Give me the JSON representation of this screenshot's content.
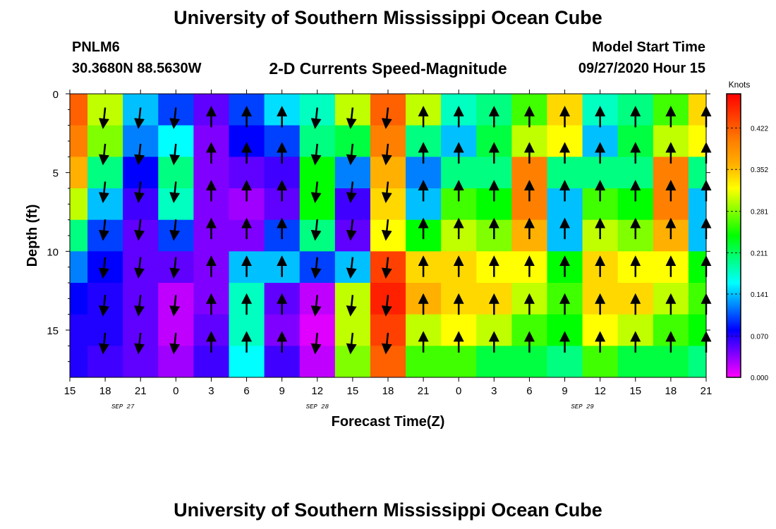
{
  "header": {
    "title": "University of Southern Mississippi Ocean Cube",
    "station": "PNLM6",
    "location": "30.3680N 88.5630W",
    "subtitle": "2-D Currents Speed-Magnitude",
    "model_label": "Model Start Time",
    "model_time": "09/27/2020 Hour 15"
  },
  "footer": {
    "title": "University of Southern Mississippi Ocean Cube"
  },
  "chart_data": {
    "type": "heatmap",
    "title": "2-D Currents Speed-Magnitude",
    "xlabel": "Forecast Time(Z)",
    "ylabel": "Depth (ft)",
    "x_range_hours": [
      0,
      54
    ],
    "x_ticks": [
      "15",
      "18",
      "21",
      "0",
      "3",
      "6",
      "9",
      "12",
      "15",
      "18",
      "21",
      "0",
      "3",
      "6",
      "9",
      "12",
      "15",
      "18",
      "21"
    ],
    "date_labels": [
      {
        "label": "SEP 27",
        "at_hour": 4.5
      },
      {
        "label": "SEP 28",
        "at_hour": 21
      },
      {
        "label": "SEP 29",
        "at_hour": 43.5
      }
    ],
    "y_range": [
      0,
      18
    ],
    "y_reversed": true,
    "y_ticks": [
      "0",
      "5",
      "10",
      "15"
    ],
    "colorbar": {
      "label": "Knots",
      "min": 0,
      "max": 0.48,
      "ticks": [
        "0.000",
        "0.070",
        "0.141",
        "0.211",
        "0.281",
        "0.352",
        "0.422"
      ],
      "colors": [
        "#ff00ff",
        "#8000ff",
        "#0000ff",
        "#0080ff",
        "#00ffff",
        "#00ff80",
        "#00ff00",
        "#80ff00",
        "#ffff00",
        "#ffb000",
        "#ff8000",
        "#ff4000",
        "#ff0000"
      ]
    },
    "depth_bins": [
      1,
      3,
      5,
      7,
      9,
      11,
      13,
      15,
      17
    ],
    "speed_columns": [
      {
        "hour": 0,
        "values": [
          0.42,
          0.4,
          0.36,
          0.3,
          0.2,
          0.12,
          0.08,
          0.07,
          0.07
        ]
      },
      {
        "hour": 3,
        "values": [
          0.3,
          0.28,
          0.2,
          0.14,
          0.1,
          0.08,
          0.07,
          0.07,
          0.06
        ]
      },
      {
        "hour": 6,
        "values": [
          0.14,
          0.12,
          0.08,
          0.06,
          0.05,
          0.05,
          0.05,
          0.05,
          0.05
        ]
      },
      {
        "hour": 9,
        "values": [
          0.1,
          0.16,
          0.2,
          0.18,
          0.1,
          0.05,
          0.02,
          0.02,
          0.03
        ]
      },
      {
        "hour": 12,
        "values": [
          0.05,
          0.04,
          0.04,
          0.04,
          0.04,
          0.04,
          0.04,
          0.05,
          0.06
        ]
      },
      {
        "hour": 15,
        "values": [
          0.1,
          0.08,
          0.05,
          0.03,
          0.04,
          0.14,
          0.18,
          0.18,
          0.16
        ]
      },
      {
        "hour": 18,
        "values": [
          0.15,
          0.1,
          0.06,
          0.05,
          0.1,
          0.14,
          0.05,
          0.04,
          0.06
        ]
      },
      {
        "hour": 21,
        "values": [
          0.18,
          0.2,
          0.24,
          0.24,
          0.2,
          0.1,
          0.02,
          0.01,
          0.02
        ]
      },
      {
        "hour": 24,
        "values": [
          0.3,
          0.22,
          0.12,
          0.06,
          0.05,
          0.14,
          0.3,
          0.3,
          0.28
        ]
      },
      {
        "hour": 27,
        "values": [
          0.42,
          0.4,
          0.36,
          0.34,
          0.32,
          0.44,
          0.46,
          0.44,
          0.42
        ]
      },
      {
        "hour": 30,
        "values": [
          0.3,
          0.2,
          0.12,
          0.14,
          0.24,
          0.34,
          0.36,
          0.3,
          0.26
        ]
      },
      {
        "hour": 33,
        "values": [
          0.18,
          0.14,
          0.2,
          0.26,
          0.3,
          0.34,
          0.34,
          0.32,
          0.26
        ]
      },
      {
        "hour": 36,
        "values": [
          0.2,
          0.22,
          0.2,
          0.24,
          0.28,
          0.32,
          0.34,
          0.3,
          0.22
        ]
      },
      {
        "hour": 39,
        "values": [
          0.26,
          0.3,
          0.4,
          0.4,
          0.36,
          0.32,
          0.3,
          0.26,
          0.22
        ]
      },
      {
        "hour": 42,
        "values": [
          0.34,
          0.32,
          0.2,
          0.14,
          0.14,
          0.24,
          0.26,
          0.24,
          0.2
        ]
      }
    ],
    "arrows_hours": [
      3,
      6,
      9,
      12,
      15,
      18,
      21,
      24,
      27,
      30,
      33,
      36,
      39,
      42,
      45,
      48,
      51,
      54
    ]
  }
}
